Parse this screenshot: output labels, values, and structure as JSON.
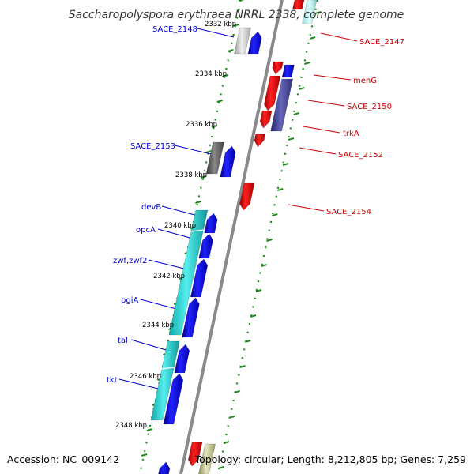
{
  "title": "Saccharopolyspora erythraea NRRL 2338, complete genome",
  "accession": "Accession: NC_009142",
  "topology": "Topology: circular; Length: 8,212,805 bp; Genes: 7,259",
  "ticks": [
    {
      "label": "2332 kbp",
      "kb": 2332
    },
    {
      "label": "2334 kbp",
      "kb": 2334
    },
    {
      "label": "2336 kbp",
      "kb": 2336
    },
    {
      "label": "2338 kbp",
      "kb": 2338
    },
    {
      "label": "2340 kbp",
      "kb": 2340
    },
    {
      "label": "2342 kbp",
      "kb": 2342
    },
    {
      "label": "2344 kbp",
      "kb": 2344
    },
    {
      "label": "2346 kbp",
      "kb": 2346
    },
    {
      "label": "2348 kbp",
      "kb": 2348
    }
  ],
  "forward_labels": [
    "SACE_2148",
    "SACE_2153",
    "devB",
    "opcA",
    "zwf,zwf2",
    "pgiA",
    "tal",
    "tkt"
  ],
  "reverse_labels": [
    "SACE_2147",
    "menG",
    "SACE_2150",
    "trkA",
    "SACE_2152",
    "SACE_2154"
  ],
  "colors": {
    "forward_gene": "#0000ee",
    "reverse_gene": "#ee0000",
    "forward_label": "#0000cc",
    "reverse_label": "#cc0000",
    "cds_cyan": "#33cccc",
    "dot_track": "#228b22",
    "backbone": "#888888"
  }
}
